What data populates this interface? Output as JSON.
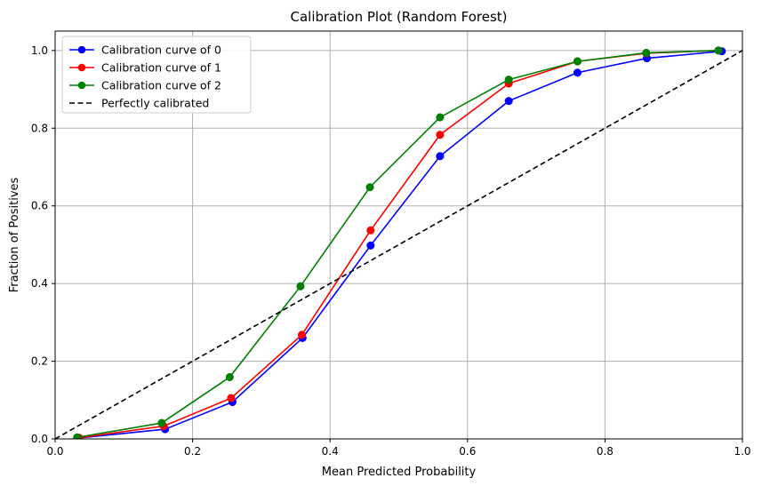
{
  "chart_data": {
    "type": "line",
    "title": "Calibration Plot (Random Forest)",
    "xlabel": "Mean Predicted Probability",
    "ylabel": "Fraction of Positives",
    "xlim": [
      0,
      1
    ],
    "ylim": [
      0,
      1.05
    ],
    "xticks": [
      "0.0",
      "0.2",
      "0.4",
      "0.6",
      "0.8",
      "1.0"
    ],
    "yticks": [
      "0.0",
      "0.2",
      "0.4",
      "0.6",
      "0.8",
      "1.0"
    ],
    "grid": true,
    "legend_position": "upper-left",
    "series": [
      {
        "name": "Calibration curve of 0",
        "color": "#0000ff",
        "marker": "circle",
        "x": [
          0.033,
          0.16,
          0.258,
          0.36,
          0.459,
          0.56,
          0.66,
          0.76,
          0.861,
          0.97
        ],
        "y": [
          0.002,
          0.025,
          0.095,
          0.26,
          0.498,
          0.728,
          0.87,
          0.943,
          0.98,
          0.998
        ]
      },
      {
        "name": "Calibration curve of 1",
        "color": "#ff0000",
        "marker": "circle",
        "x": [
          0.035,
          0.158,
          0.256,
          0.359,
          0.459,
          0.56,
          0.66,
          0.76,
          0.86,
          0.965
        ],
        "y": [
          0.003,
          0.033,
          0.105,
          0.268,
          0.537,
          0.783,
          0.915,
          0.972,
          0.993,
          1.0
        ]
      },
      {
        "name": "Calibration curve of 2",
        "color": "#008000",
        "marker": "circle",
        "x": [
          0.032,
          0.155,
          0.254,
          0.357,
          0.458,
          0.56,
          0.66,
          0.76,
          0.86,
          0.965
        ],
        "y": [
          0.004,
          0.041,
          0.159,
          0.393,
          0.648,
          0.828,
          0.925,
          0.972,
          0.994,
          1.0
        ]
      },
      {
        "name": "Perfectly calibrated",
        "color": "#000000",
        "style": "dashed",
        "x": [
          0,
          1
        ],
        "y": [
          0,
          1
        ]
      }
    ]
  }
}
